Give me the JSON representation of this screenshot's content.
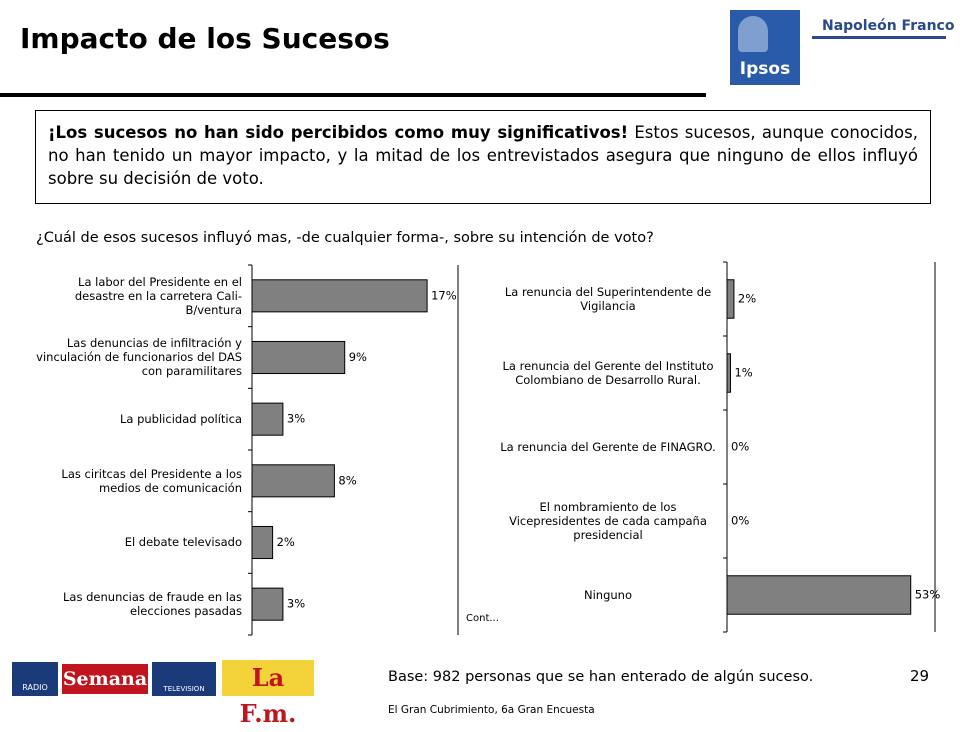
{
  "title": "Impacto de los Sucesos",
  "logo": {
    "brand": "Ipsos",
    "partner": "Napoleón Franco"
  },
  "summary": {
    "bold": "¡Los sucesos no han sido percibidos como muy significativos!",
    "text": " Estos sucesos, aunque conocidos, no han tenido un mayor impacto, y la mitad de los entrevistados asegura que ninguno de ellos influyó sobre su decisión de voto."
  },
  "question": "¿Cuál de esos sucesos influyó mas, -de cualquier forma-, sobre su intención de voto?",
  "chart_data": [
    {
      "type": "bar",
      "orientation": "horizontal",
      "categories": [
        "La labor del Presidente en el desastre en la carretera Cali-B/ventura",
        "Las denuncias de infiltración y vinculación de funcionarios del DAS con paramilitares",
        "La publicidad política",
        "Las ciritcas del Presidente a los medios de comunicación",
        "El debate televisado",
        "Las denuncias de fraude en las elecciones pasadas"
      ],
      "values": [
        17,
        9,
        3,
        8,
        2,
        3
      ],
      "value_labels": [
        "17%",
        "9%",
        "3%",
        "8%",
        "2%",
        "3%"
      ],
      "color": "#808080",
      "xlim": [
        0,
        20
      ]
    },
    {
      "type": "bar",
      "orientation": "horizontal",
      "categories": [
        "La renuncia del Superintendente de Vigilancia",
        "La renuncia del Gerente del Instituto Colombiano de Desarrollo Rural.",
        "La renuncia del Gerente de FINAGRO.",
        "El nombramiento de los Vicepresidentes de cada campaña presidencial",
        "Ninguno"
      ],
      "values": [
        2,
        1,
        0,
        0,
        53
      ],
      "value_labels": [
        "2%",
        "1%",
        "0%",
        "0%",
        "53%"
      ],
      "color": "#808080",
      "xlim": [
        0,
        60
      ]
    }
  ],
  "cont": "Cont...",
  "base": "Base: 982 personas que se han enterado de algún suceso.",
  "page_number": "29",
  "footer": "El Gran Cubrimiento, 6a Gran Encuesta",
  "sponsors": [
    "RADIO",
    "Semana",
    "TELEVISION",
    "La F.m."
  ]
}
